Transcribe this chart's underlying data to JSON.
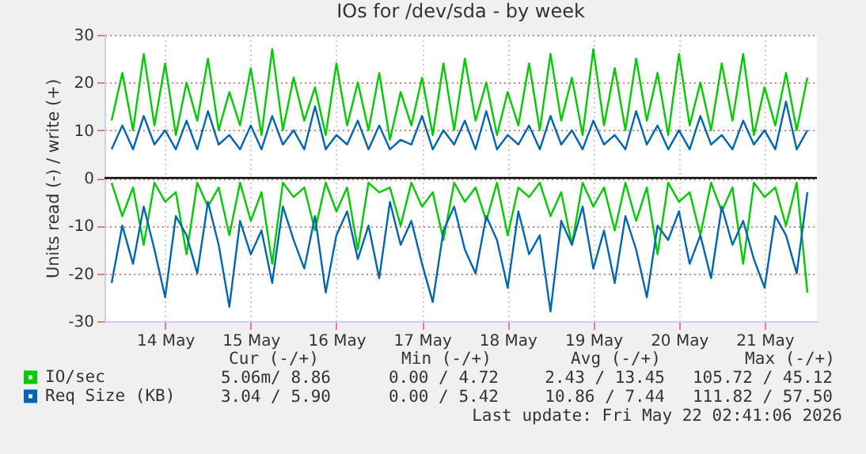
{
  "chart_data": {
    "type": "line",
    "title": "IOs for /dev/sda - by week",
    "ylabel": "Units read (-) / write (+)",
    "x": [
      "2026-05-13T21:00",
      "2026-05-14T00:00",
      "2026-05-14T03:00",
      "2026-05-14T06:00",
      "2026-05-14T09:00",
      "2026-05-14T12:00",
      "2026-05-14T15:00",
      "2026-05-14T18:00",
      "2026-05-14T21:00",
      "2026-05-15T00:00",
      "2026-05-15T03:00",
      "2026-05-15T06:00",
      "2026-05-15T09:00",
      "2026-05-15T12:00",
      "2026-05-15T15:00",
      "2026-05-15T18:00",
      "2026-05-15T21:00",
      "2026-05-16T00:00",
      "2026-05-16T03:00",
      "2026-05-16T06:00",
      "2026-05-16T09:00",
      "2026-05-16T12:00",
      "2026-05-16T15:00",
      "2026-05-16T18:00",
      "2026-05-16T21:00",
      "2026-05-17T00:00",
      "2026-05-17T03:00",
      "2026-05-17T06:00",
      "2026-05-17T09:00",
      "2026-05-17T12:00",
      "2026-05-17T15:00",
      "2026-05-17T18:00",
      "2026-05-17T21:00",
      "2026-05-18T00:00",
      "2026-05-18T03:00",
      "2026-05-18T06:00",
      "2026-05-18T09:00",
      "2026-05-18T12:00",
      "2026-05-18T15:00",
      "2026-05-18T18:00",
      "2026-05-18T21:00",
      "2026-05-19T00:00",
      "2026-05-19T03:00",
      "2026-05-19T06:00",
      "2026-05-19T09:00",
      "2026-05-19T12:00",
      "2026-05-19T15:00",
      "2026-05-19T18:00",
      "2026-05-19T21:00",
      "2026-05-20T00:00",
      "2026-05-20T03:00",
      "2026-05-20T06:00",
      "2026-05-20T09:00",
      "2026-05-20T12:00",
      "2026-05-20T15:00",
      "2026-05-20T18:00",
      "2026-05-20T21:00",
      "2026-05-21T00:00",
      "2026-05-21T03:00",
      "2026-05-21T06:00",
      "2026-05-21T09:00",
      "2026-05-21T12:00",
      "2026-05-21T15:00",
      "2026-05-21T18:00",
      "2026-05-21T21:00",
      "2026-05-22T00:00"
    ],
    "series": [
      {
        "name": "IO/sec",
        "color": "#00cc00",
        "values": [
          12,
          22,
          10,
          26,
          11,
          24,
          9,
          20,
          12,
          25,
          10,
          18,
          11,
          23,
          9,
          27,
          10,
          21,
          12,
          19,
          9,
          24,
          11,
          20,
          10,
          22,
          8,
          18,
          11,
          21,
          9,
          24,
          10,
          25,
          12,
          20,
          9,
          18,
          11,
          24,
          10,
          26,
          12,
          21,
          9,
          27,
          11,
          23,
          10,
          25,
          12,
          22,
          9,
          26,
          11,
          20,
          10,
          24,
          12,
          26,
          9,
          19,
          11,
          22,
          10,
          21
        ]
      },
      {
        "color": "#00cc00",
        "values": [
          -1,
          -8,
          -2,
          -14,
          -1,
          -5,
          -3,
          -16,
          -1,
          -6,
          -2,
          -12,
          -1,
          -9,
          -3,
          -18,
          -1,
          -4,
          -2,
          -11,
          -1,
          -7,
          -2,
          -15,
          -1,
          -3,
          -2,
          -10,
          -1,
          -6,
          -3,
          -13,
          -1,
          -5,
          -2,
          -9,
          -1,
          -12,
          -2,
          -4,
          -1,
          -8,
          -3,
          -14,
          -1,
          -6,
          -2,
          -11,
          -1,
          -9,
          -2,
          -16,
          -1,
          -5,
          -3,
          -12,
          -1,
          -7,
          -2,
          -18,
          -1,
          -4,
          -2,
          -10,
          -1,
          -24
        ]
      },
      {
        "name": "Req Size (KB)",
        "color": "#0066b3",
        "values": [
          6,
          11,
          6,
          13,
          7,
          10,
          6,
          12,
          6,
          14,
          7,
          9,
          6,
          11,
          6,
          13,
          7,
          10,
          6,
          15,
          6,
          9,
          7,
          12,
          6,
          11,
          6,
          8,
          7,
          13,
          6,
          10,
          7,
          12,
          6,
          14,
          6,
          9,
          7,
          11,
          6,
          13,
          7,
          10,
          6,
          12,
          7,
          9,
          6,
          14,
          7,
          11,
          6,
          10,
          6,
          13,
          7,
          9,
          6,
          12,
          7,
          10,
          6,
          16,
          6,
          10
        ]
      },
      {
        "color": "#0066b3",
        "values": [
          -22,
          -10,
          -18,
          -6,
          -15,
          -25,
          -8,
          -12,
          -20,
          -5,
          -14,
          -27,
          -9,
          -16,
          -11,
          -22,
          -6,
          -13,
          -19,
          -8,
          -24,
          -12,
          -7,
          -17,
          -10,
          -21,
          -5,
          -14,
          -9,
          -18,
          -26,
          -11,
          -6,
          -15,
          -20,
          -8,
          -13,
          -23,
          -7,
          -16,
          -12,
          -28,
          -9,
          -14,
          -6,
          -19,
          -11,
          -22,
          -8,
          -15,
          -25,
          -10,
          -13,
          -7,
          -18,
          -12,
          -21,
          -6,
          -14,
          -9,
          -17,
          -23,
          -8,
          -12,
          -20,
          -3
        ]
      }
    ],
    "xlim": [
      "2026-05-13T19:00",
      "2026-05-22T02:40"
    ],
    "xticks": [
      {
        "value": "2026-05-14T12:00",
        "label": "14 May"
      },
      {
        "value": "2026-05-15T12:00",
        "label": "15 May"
      },
      {
        "value": "2026-05-16T12:00",
        "label": "16 May"
      },
      {
        "value": "2026-05-17T12:00",
        "label": "17 May"
      },
      {
        "value": "2026-05-18T12:00",
        "label": "18 May"
      },
      {
        "value": "2026-05-19T12:00",
        "label": "19 May"
      },
      {
        "value": "2026-05-20T12:00",
        "label": "20 May"
      },
      {
        "value": "2026-05-21T12:00",
        "label": "21 May"
      }
    ],
    "ylim": [
      -30,
      30
    ],
    "yticks": [
      -30,
      -20,
      -10,
      0,
      10,
      20,
      30
    ],
    "ref_lines": [
      {
        "axis": "y",
        "value": 0,
        "color": "#000000"
      }
    ],
    "grid": true,
    "legend": "bottom left",
    "annotations": [
      "Cur (-/+)",
      "Min (-/+)",
      "Avg (-/+)",
      "Max (-/+)",
      "5.06m/  8.86",
      "0.00 /  4.72",
      "2.43 / 13.45",
      "105.72 / 45.12",
      "3.04 /  5.90",
      "0.00 /  5.42",
      "10.86 /  7.44",
      "111.82 / 57.50",
      "Last update: Fri May 22 02:41:06 2026"
    ]
  }
}
